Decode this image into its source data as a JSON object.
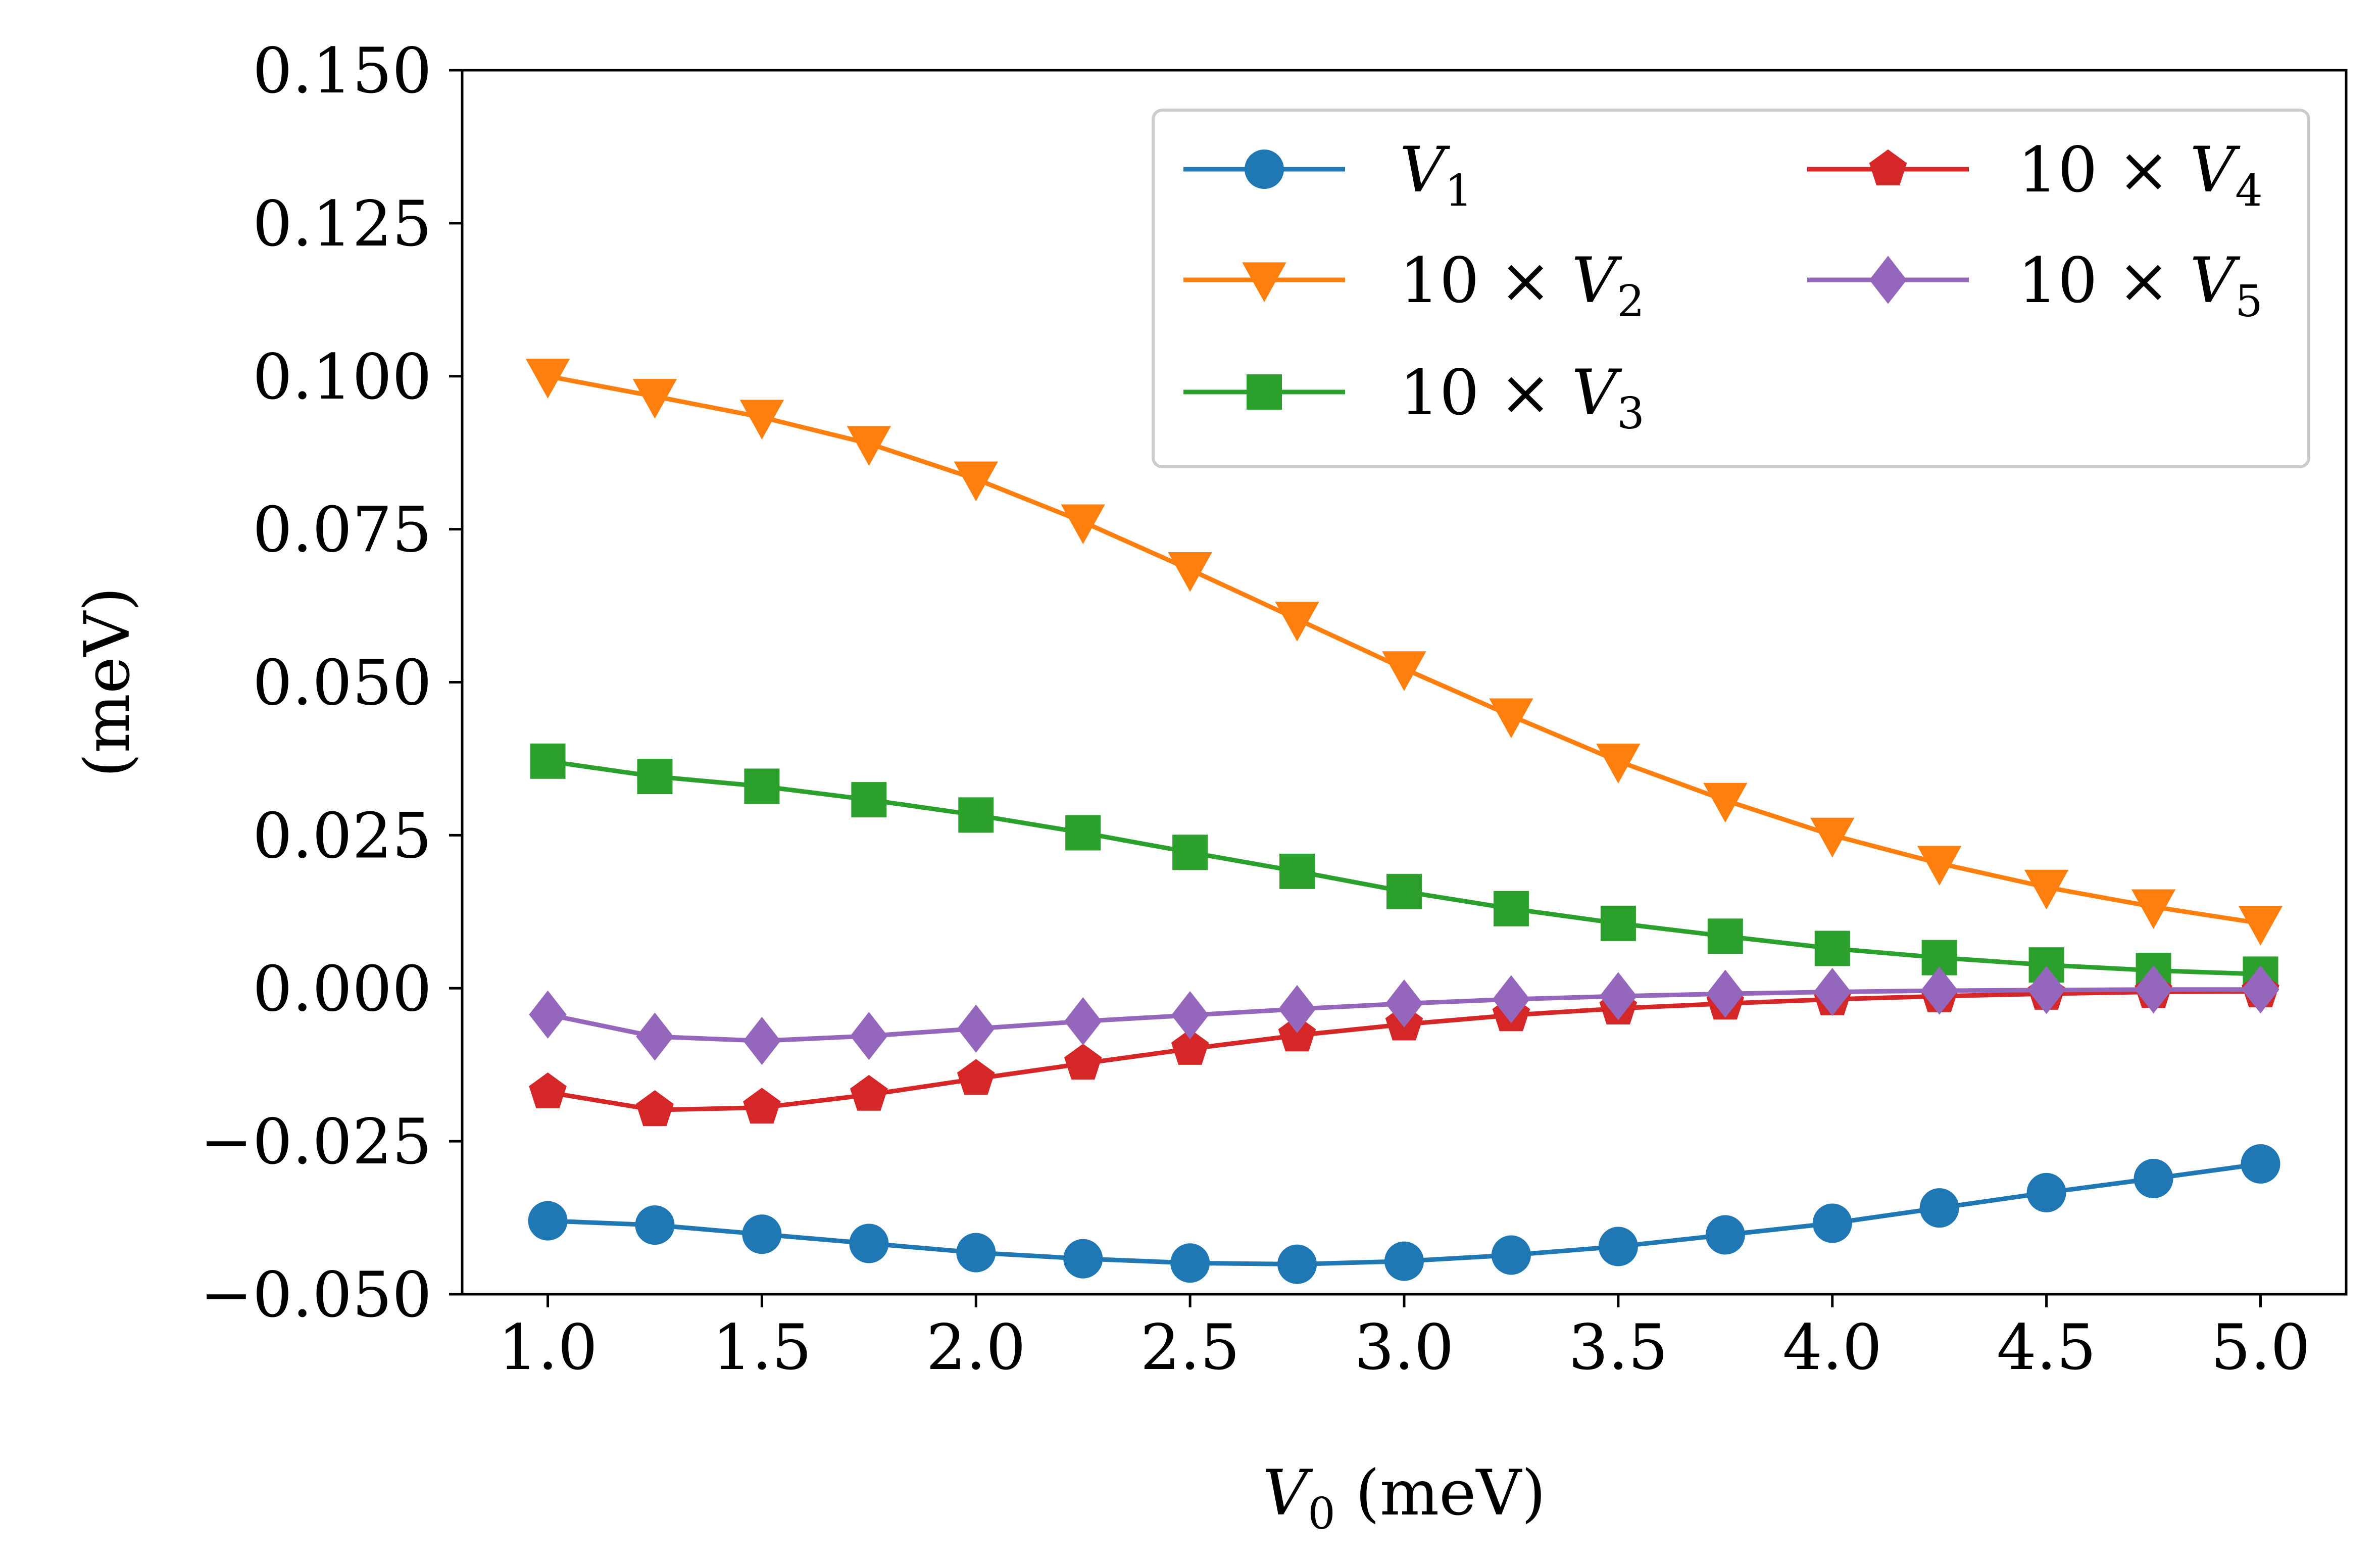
{
  "chart_data": {
    "type": "line",
    "title": "",
    "xlabel": "V_0 (meV)",
    "ylabel": "(meV)",
    "xlim": [
      0.8,
      5.2
    ],
    "ylim": [
      -0.05,
      0.15
    ],
    "x_ticks": [
      1.0,
      1.5,
      2.0,
      2.5,
      3.0,
      3.5,
      4.0,
      4.5,
      5.0
    ],
    "x_tick_labels": [
      "1.0",
      "1.5",
      "2.0",
      "2.5",
      "3.0",
      "3.5",
      "4.0",
      "4.5",
      "5.0"
    ],
    "y_ticks": [
      -0.05,
      -0.025,
      0.0,
      0.025,
      0.05,
      0.075,
      0.1,
      0.125,
      0.15
    ],
    "y_tick_labels": [
      "−0.050",
      "−0.025",
      "0.000",
      "0.025",
      "0.050",
      "0.075",
      "0.100",
      "0.125",
      "0.150"
    ],
    "grid": false,
    "legend_position": "top-right",
    "legend_columns": 2,
    "x": [
      1.0,
      1.25,
      1.5,
      1.75,
      2.0,
      2.25,
      2.5,
      2.75,
      3.0,
      3.25,
      3.5,
      3.75,
      4.0,
      4.25,
      4.5,
      4.75,
      5.0
    ],
    "series": [
      {
        "name": "V_1",
        "label_main": "V",
        "label_sub": "1",
        "label_prefix": "",
        "color": "#1f77b4",
        "marker": "circle",
        "values": [
          -0.038,
          -0.0387,
          -0.0402,
          -0.0417,
          -0.0432,
          -0.0442,
          -0.0449,
          -0.0451,
          -0.0446,
          -0.0436,
          -0.0422,
          -0.0403,
          -0.0384,
          -0.0359,
          -0.0334,
          -0.0311,
          -0.0287
        ]
      },
      {
        "name": "10 × V_2",
        "label_main": "V",
        "label_sub": "2",
        "label_prefix": "10 × ",
        "color": "#ff7f0e",
        "marker": "triangle-down",
        "values": [
          0.1,
          0.0967,
          0.0933,
          0.089,
          0.0832,
          0.0762,
          0.0684,
          0.0603,
          0.0522,
          0.0445,
          0.0371,
          0.0307,
          0.025,
          0.0204,
          0.0165,
          0.0133,
          0.0106
        ]
      },
      {
        "name": "10 × V_3",
        "label_main": "V",
        "label_sub": "3",
        "label_prefix": "10 × ",
        "color": "#2ca02c",
        "marker": "square",
        "values": [
          0.0371,
          0.0346,
          0.033,
          0.0308,
          0.0283,
          0.0254,
          0.0222,
          0.0191,
          0.0158,
          0.013,
          0.0106,
          0.0085,
          0.0065,
          0.005,
          0.0038,
          0.0029,
          0.0023
        ]
      },
      {
        "name": "10 × V_4",
        "label_main": "V",
        "label_sub": "4",
        "label_prefix": "10 × ",
        "color": "#d62728",
        "marker": "pentagon",
        "values": [
          -0.017,
          -0.0199,
          -0.0195,
          -0.0174,
          -0.0148,
          -0.0123,
          -0.0099,
          -0.0077,
          -0.0059,
          -0.0044,
          -0.0033,
          -0.0025,
          -0.0018,
          -0.0013,
          -0.0009,
          -0.0006,
          -0.0005
        ]
      },
      {
        "name": "10 × V_5",
        "label_main": "V",
        "label_sub": "5",
        "label_prefix": "10 × ",
        "color": "#9467bd",
        "marker": "diamond",
        "values": [
          -0.0043,
          -0.0079,
          -0.0086,
          -0.0078,
          -0.0066,
          -0.0054,
          -0.0044,
          -0.0034,
          -0.0025,
          -0.0018,
          -0.0013,
          -0.0009,
          -0.0006,
          -0.0004,
          -0.0003,
          -0.0002,
          -0.0002
        ]
      }
    ]
  }
}
